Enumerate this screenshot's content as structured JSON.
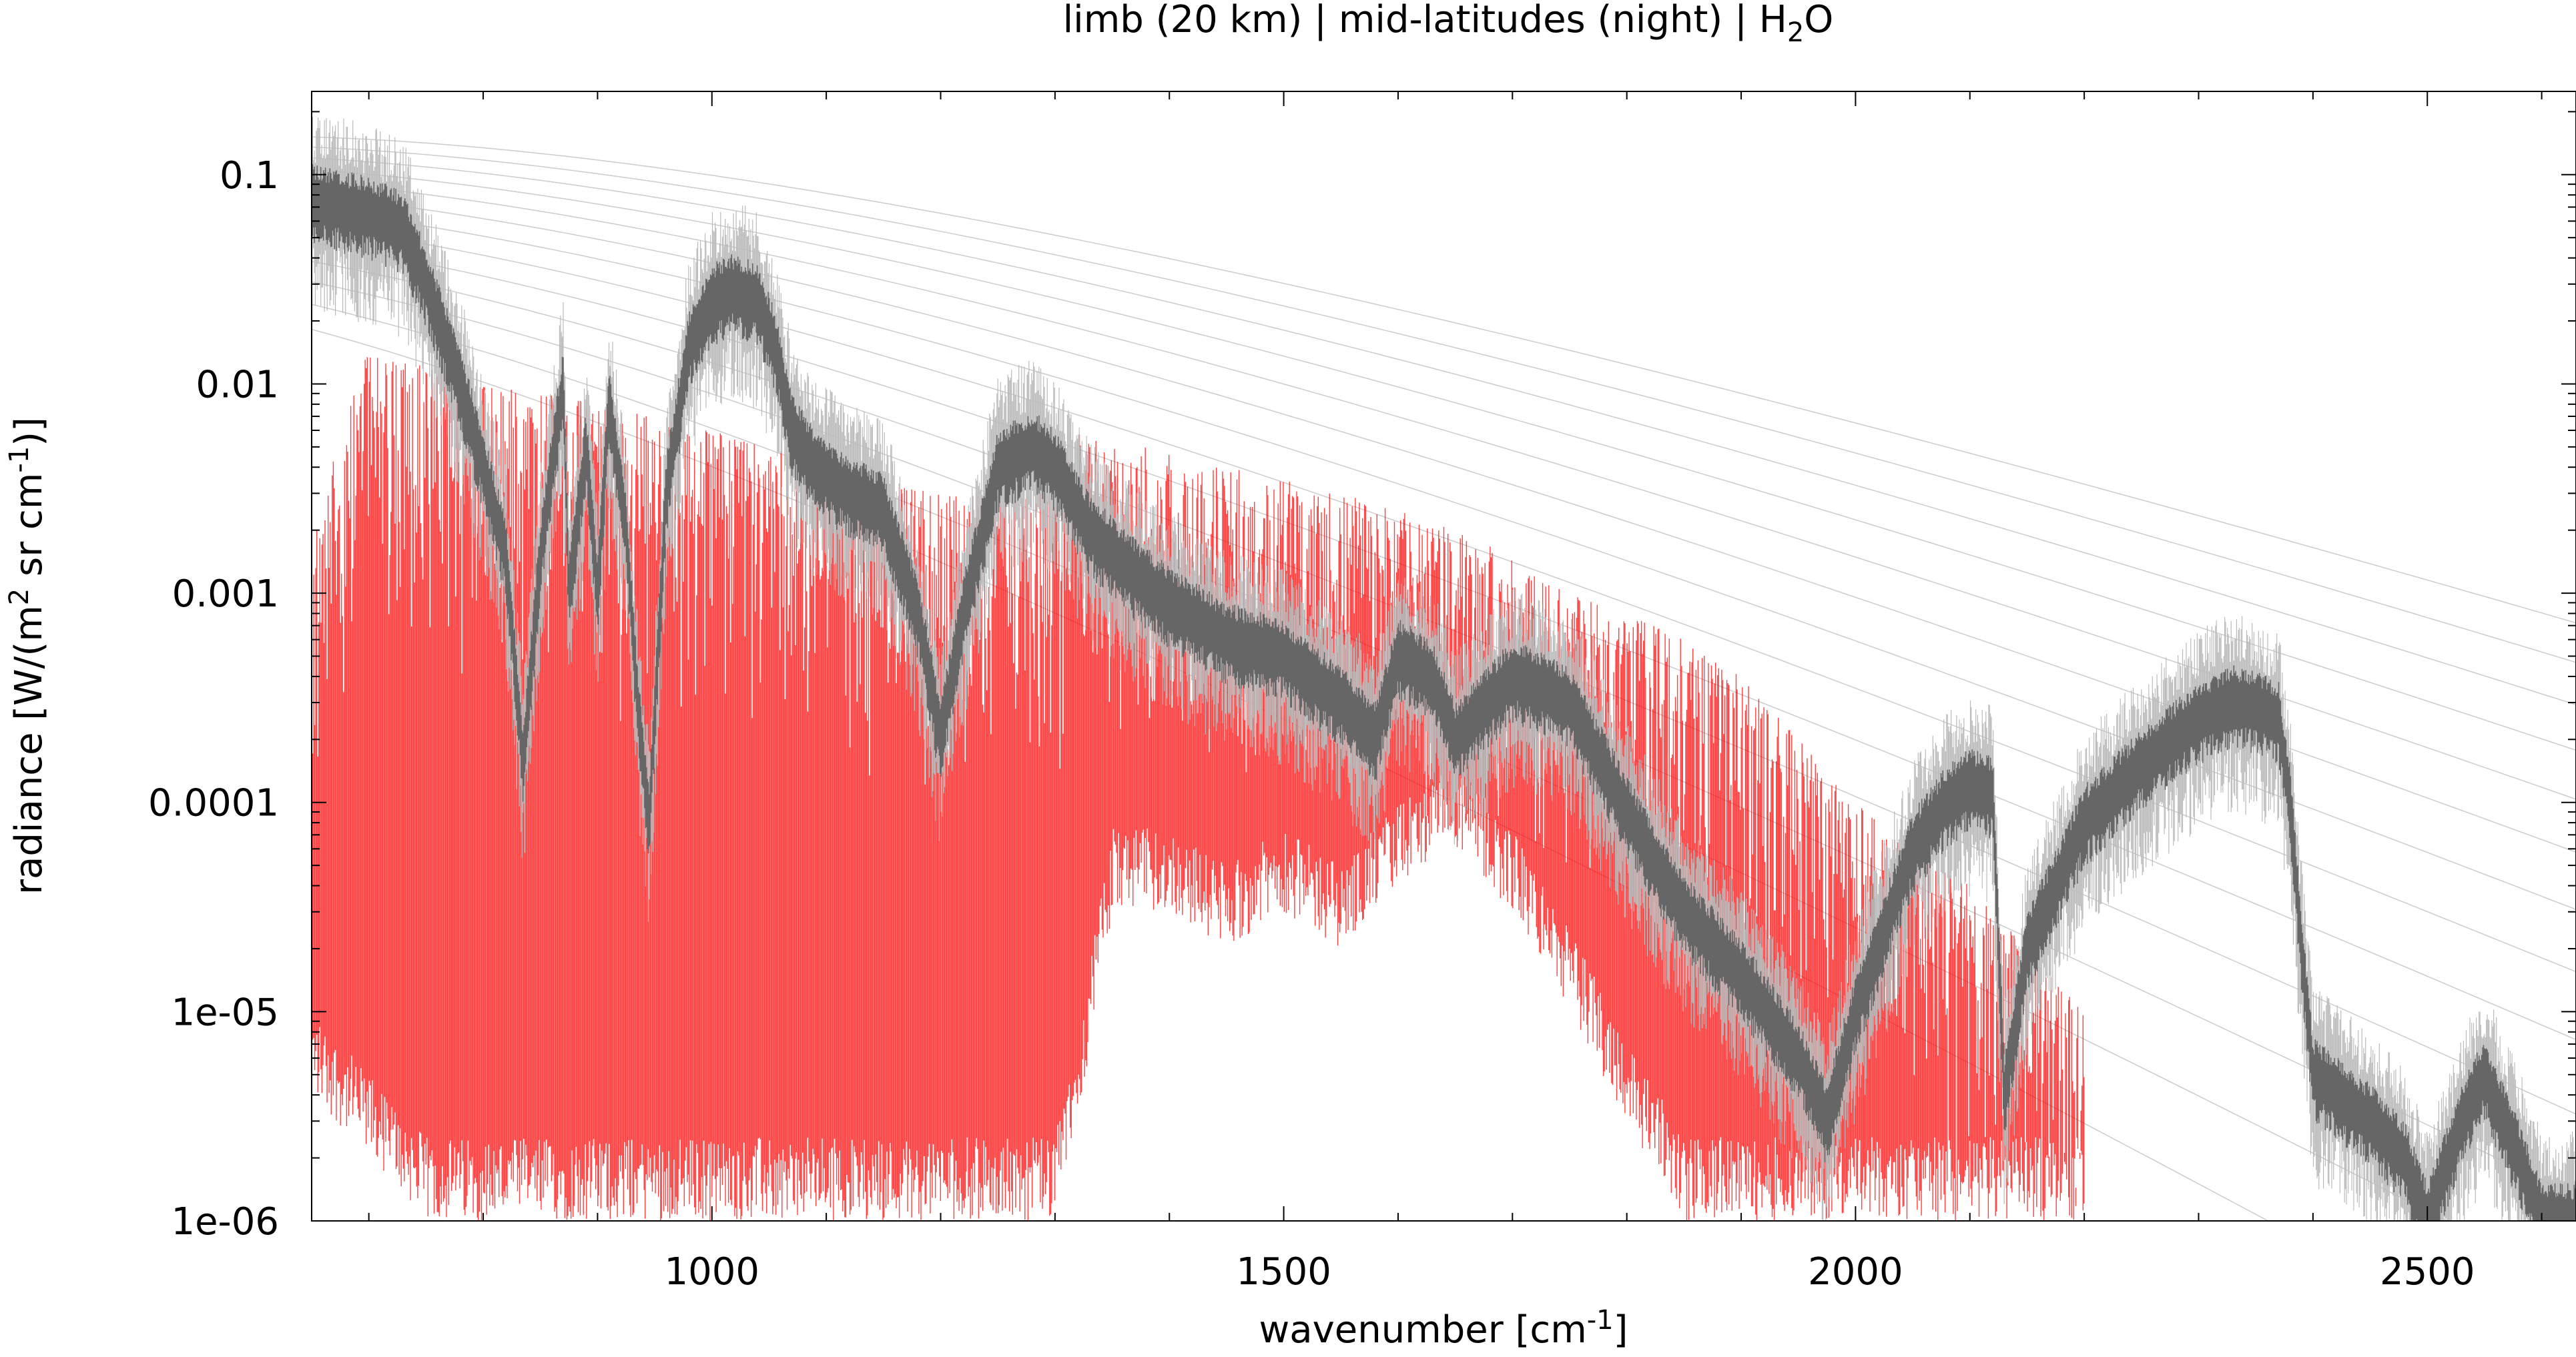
{
  "chart_data": {
    "type": "line",
    "title": "limb (20 km) | mid-latitudes (night) | H",
    "title_sub": "2",
    "title_end": "O",
    "xlabel": "wavenumber [cm",
    "xlabel_sup": "-1",
    "xlabel_end": "]",
    "ylabel": "radiance [W/(m",
    "ylabel_sup": "2",
    "ylabel_mid": " sr cm",
    "ylabel_sup2": "-1",
    "ylabel_end": ")]",
    "x_range": [
      650,
      2630
    ],
    "y_range": [
      1e-06,
      0.25
    ],
    "y_scale": "log",
    "x_ticks": [
      1000,
      1500,
      2000,
      2500
    ],
    "y_ticks": [
      {
        "v": 0.1,
        "label": "0.1"
      },
      {
        "v": 0.01,
        "label": "0.01"
      },
      {
        "v": 0.001,
        "label": "0.001"
      },
      {
        "v": 0.0001,
        "label": "0.0001"
      },
      {
        "v": 1e-05,
        "label": "1e-05"
      },
      {
        "v": 1e-06,
        "label": "1e-06"
      }
    ],
    "grid": false,
    "legend": "none",
    "colors": {
      "total": "#666666",
      "total_light": "#bbbbbb",
      "h2o_lines": "#ff0000",
      "planck": "#cccccc"
    },
    "series": [
      {
        "role": "total",
        "x": [
          650,
          700,
          730,
          750,
          780,
          800,
          820,
          835,
          850,
          870,
          875,
          890,
          900,
          910,
          925,
          935,
          945,
          960,
          980,
          1000,
          1020,
          1040,
          1055,
          1070,
          1090,
          1120,
          1150,
          1180,
          1200,
          1220,
          1250,
          1280,
          1300,
          1330,
          1370,
          1400,
          1450,
          1500,
          1550,
          1580,
          1600,
          1630,
          1650,
          1700,
          1750,
          1800,
          1850,
          1900,
          1950,
          1975,
          2000,
          2050,
          2080,
          2100,
          2120,
          2130,
          2150,
          2200,
          2250,
          2300,
          2330,
          2350,
          2370,
          2380,
          2390,
          2400,
          2450,
          2480,
          2500,
          2530,
          2550,
          2580,
          2600,
          2630
        ],
        "y": [
          0.075,
          0.065,
          0.055,
          0.03,
          0.01,
          0.004,
          0.0015,
          0.00015,
          0.0015,
          0.01,
          0.001,
          0.005,
          0.001,
          0.008,
          0.002,
          0.0003,
          8e-05,
          0.003,
          0.015,
          0.025,
          0.028,
          0.025,
          0.015,
          0.006,
          0.004,
          0.003,
          0.0025,
          0.0008,
          0.0002,
          0.0008,
          0.004,
          0.005,
          0.004,
          0.002,
          0.0012,
          0.0009,
          0.0006,
          0.0005,
          0.0003,
          0.0002,
          0.0005,
          0.0004,
          0.0002,
          0.0004,
          0.0003,
          9e-05,
          3e-05,
          1.5e-05,
          6e-06,
          3e-06,
          1e-05,
          6e-05,
          0.0001,
          0.00012,
          0.00011,
          4e-06,
          2e-05,
          8e-05,
          0.00015,
          0.00025,
          0.0003,
          0.00028,
          0.00025,
          0.0001,
          2e-05,
          5e-06,
          3e-06,
          2e-06,
          1e-06,
          3e-06,
          5e-06,
          2e-06,
          1e-06,
          1e-06
        ]
      },
      {
        "role": "h2o_lines",
        "x": [
          650,
          700,
          750,
          800,
          850,
          900,
          950,
          1000,
          1050,
          1100,
          1150,
          1200,
          1250,
          1300,
          1320,
          1350,
          1400,
          1450,
          1500,
          1550,
          1600,
          1650,
          1700,
          1750,
          1800,
          1850,
          1900,
          1950,
          2000,
          2050,
          2100,
          2150,
          2200
        ],
        "y_top": [
          0.002,
          0.015,
          0.012,
          0.01,
          0.009,
          0.008,
          0.007,
          0.006,
          0.005,
          0.004,
          0.0035,
          0.003,
          0.003,
          0.003,
          0.006,
          0.005,
          0.005,
          0.004,
          0.0035,
          0.003,
          0.0025,
          0.002,
          0.0015,
          0.001,
          0.0008,
          0.0006,
          0.0004,
          0.0002,
          0.0001,
          6e-05,
          4e-05,
          2e-05,
          1e-05
        ],
        "y_floor": [
          4e-06,
          2e-06,
          1e-06,
          1e-06,
          1e-06,
          1e-06,
          1e-06,
          1e-06,
          1e-06,
          1e-06,
          1e-06,
          1e-06,
          1e-06,
          1e-06,
          3e-06,
          3e-05,
          3e-05,
          2e-05,
          3e-05,
          2e-05,
          4e-05,
          6e-05,
          3e-05,
          1e-05,
          3e-06,
          1e-06,
          1e-06,
          1e-06,
          1e-06,
          1e-06,
          1e-06,
          1e-06,
          1e-06
        ]
      }
    ],
    "planck_temperatures_K": [
      300,
      290,
      280,
      270,
      260,
      250,
      240,
      230,
      220,
      210,
      200,
      190,
      180
    ]
  }
}
